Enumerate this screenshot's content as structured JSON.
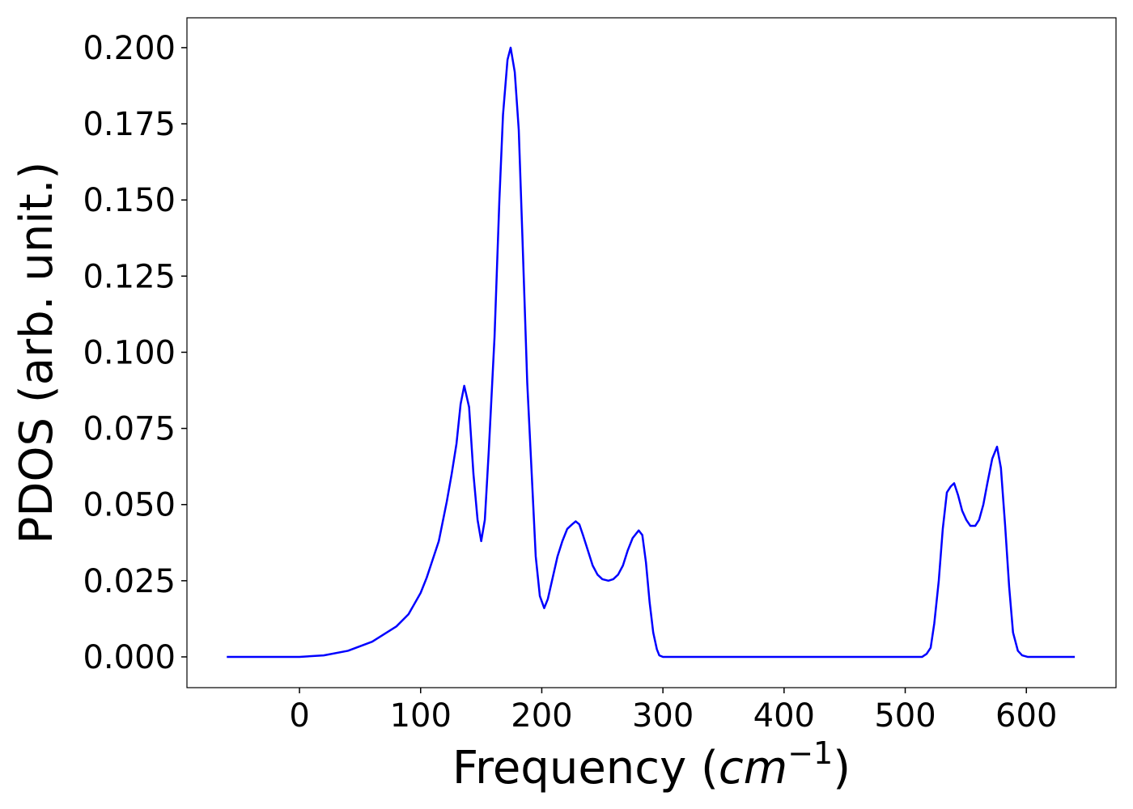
{
  "chart_data": {
    "type": "line",
    "xlabel": {
      "text": "Frequency (",
      "unit": "cm",
      "exponent": "−1",
      "close": ")"
    },
    "ylabel": "PDOS (arb. unit.)",
    "x": [
      -60,
      0,
      20,
      40,
      60,
      80,
      90,
      100,
      105,
      110,
      115,
      121.6,
      125.6,
      129.6,
      133,
      136,
      140,
      143.6,
      147,
      150,
      153,
      156.3,
      161,
      165,
      168,
      171.7,
      174.3,
      177.7,
      181,
      184,
      188,
      191.7,
      195,
      198.4,
      202,
      205,
      209,
      213,
      217,
      221,
      225,
      228,
      231,
      234,
      238,
      242,
      246,
      250,
      255,
      259,
      263,
      267,
      271,
      275,
      280,
      283,
      286,
      289,
      292,
      295,
      297,
      300,
      320,
      514,
      517.7,
      521,
      524,
      527.7,
      531,
      534.4,
      537.7,
      540.4,
      543.7,
      547,
      550.4,
      553.8,
      557.8,
      561,
      564.5,
      567.8,
      571.8,
      575.8,
      579,
      582.5,
      585.8,
      589,
      593,
      596.5,
      601,
      640
    ],
    "series": [
      {
        "color": "#0000ff",
        "values": [
          0,
          0,
          0.0005,
          0.002,
          0.005,
          0.01,
          0.014,
          0.021,
          0.026,
          0.032,
          0.038,
          0.051,
          0.06,
          0.07,
          0.083,
          0.089,
          0.082,
          0.06,
          0.045,
          0.038,
          0.045,
          0.068,
          0.105,
          0.15,
          0.178,
          0.196,
          0.2,
          0.192,
          0.173,
          0.138,
          0.09,
          0.06,
          0.033,
          0.02,
          0.016,
          0.019,
          0.026,
          0.033,
          0.038,
          0.042,
          0.0435,
          0.0445,
          0.0435,
          0.04,
          0.035,
          0.03,
          0.027,
          0.0255,
          0.025,
          0.0255,
          0.027,
          0.03,
          0.035,
          0.039,
          0.0415,
          0.04,
          0.031,
          0.018,
          0.008,
          0.0025,
          0.0005,
          0,
          0,
          0,
          0.001,
          0.003,
          0.011,
          0.025,
          0.042,
          0.054,
          0.056,
          0.057,
          0.053,
          0.048,
          0.045,
          0.043,
          0.043,
          0.045,
          0.05,
          0.057,
          0.065,
          0.069,
          0.062,
          0.043,
          0.023,
          0.008,
          0.002,
          0.0005,
          0,
          0
        ]
      }
    ],
    "xlim": [
      -92.9,
      674
    ],
    "ylim": [
      -0.0101,
      0.2098
    ],
    "xticks": [
      0,
      100,
      200,
      300,
      400,
      500,
      600
    ],
    "yticks": [
      {
        "value": 0,
        "label": "0.000"
      },
      {
        "value": 0.025,
        "label": "0.025"
      },
      {
        "value": 0.05,
        "label": "0.050"
      },
      {
        "value": 0.075,
        "label": "0.075"
      },
      {
        "value": 0.1,
        "label": "0.100"
      },
      {
        "value": 0.125,
        "label": "0.125"
      },
      {
        "value": 0.15,
        "label": "0.150"
      },
      {
        "value": 0.175,
        "label": "0.175"
      },
      {
        "value": 0.2,
        "label": "0.200"
      }
    ]
  }
}
